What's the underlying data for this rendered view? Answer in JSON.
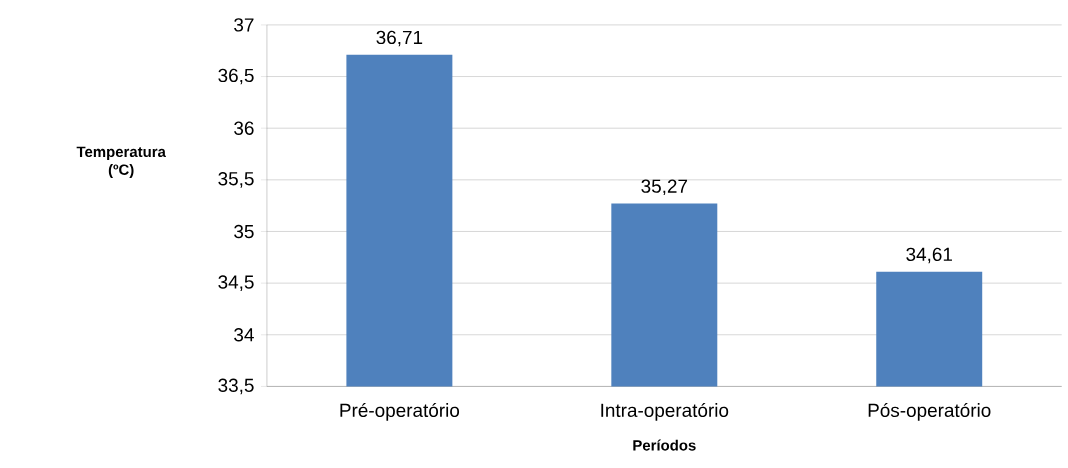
{
  "chart_data": {
    "type": "bar",
    "xlabel": "Períodos",
    "ylabel": "Temperatura (ºC)",
    "categories": [
      "Pré-operatório",
      "Intra-operatório",
      "Pós-operatório"
    ],
    "values": [
      36.71,
      35.27,
      34.61
    ],
    "value_labels": [
      "36,71",
      "35,27",
      "34,61"
    ],
    "color": "#4f81bd",
    "ylim": [
      33.5,
      37
    ],
    "yticks": [
      {
        "value": 33.5,
        "label": "33,5"
      },
      34,
      {
        "value": 34.5,
        "label": "34,5"
      },
      35,
      {
        "value": 35.5,
        "label": "35,5"
      },
      36,
      {
        "value": 36.5,
        "label": "36,5"
      },
      37
    ],
    "grid": "y"
  }
}
